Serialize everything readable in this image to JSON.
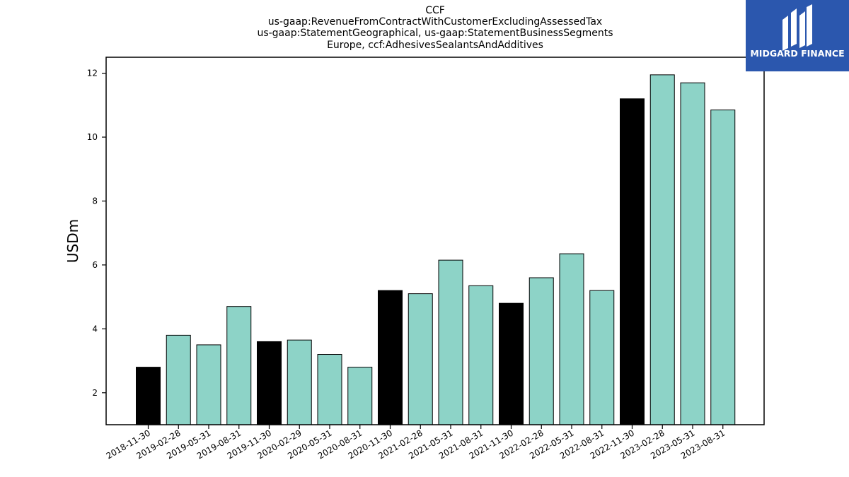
{
  "title_lines": [
    "CCF",
    "us-gaap:RevenueFromContractWithCustomerExcludingAssessedTax",
    "us-gaap:StatementGeographical, us-gaap:StatementBusinessSegments",
    "Europe, ccf:AdhesivesSealantsAndAdditives"
  ],
  "logo": {
    "text": "MIDGARD FINANCE",
    "bg_color": "#2b57ae"
  },
  "chart_data": {
    "type": "bar",
    "ylabel": "USDm",
    "xlabel": "",
    "ylim": [
      1,
      12.5
    ],
    "yticks": [
      2,
      4,
      6,
      8,
      10,
      12
    ],
    "grid": false,
    "categories": [
      "2018-11-30",
      "2019-02-28",
      "2019-05-31",
      "2019-08-31",
      "2019-11-30",
      "2020-02-29",
      "2020-05-31",
      "2020-08-31",
      "2020-11-30",
      "2021-02-28",
      "2021-05-31",
      "2021-08-31",
      "2021-11-30",
      "2022-02-28",
      "2022-05-31",
      "2022-08-31",
      "2022-11-30",
      "2023-02-28",
      "2023-05-31",
      "2023-08-31"
    ],
    "values": [
      2.8,
      3.8,
      3.5,
      4.7,
      3.6,
      3.65,
      3.2,
      2.8,
      5.2,
      5.1,
      6.15,
      5.35,
      4.8,
      5.6,
      6.35,
      5.2,
      11.2,
      11.95,
      11.7,
      10.85
    ],
    "highlight": [
      true,
      false,
      false,
      false,
      true,
      false,
      false,
      false,
      true,
      false,
      false,
      false,
      true,
      false,
      false,
      false,
      true,
      false,
      false,
      false
    ],
    "colors": {
      "highlight": "#000000",
      "normal": "#8dd3c7"
    }
  }
}
